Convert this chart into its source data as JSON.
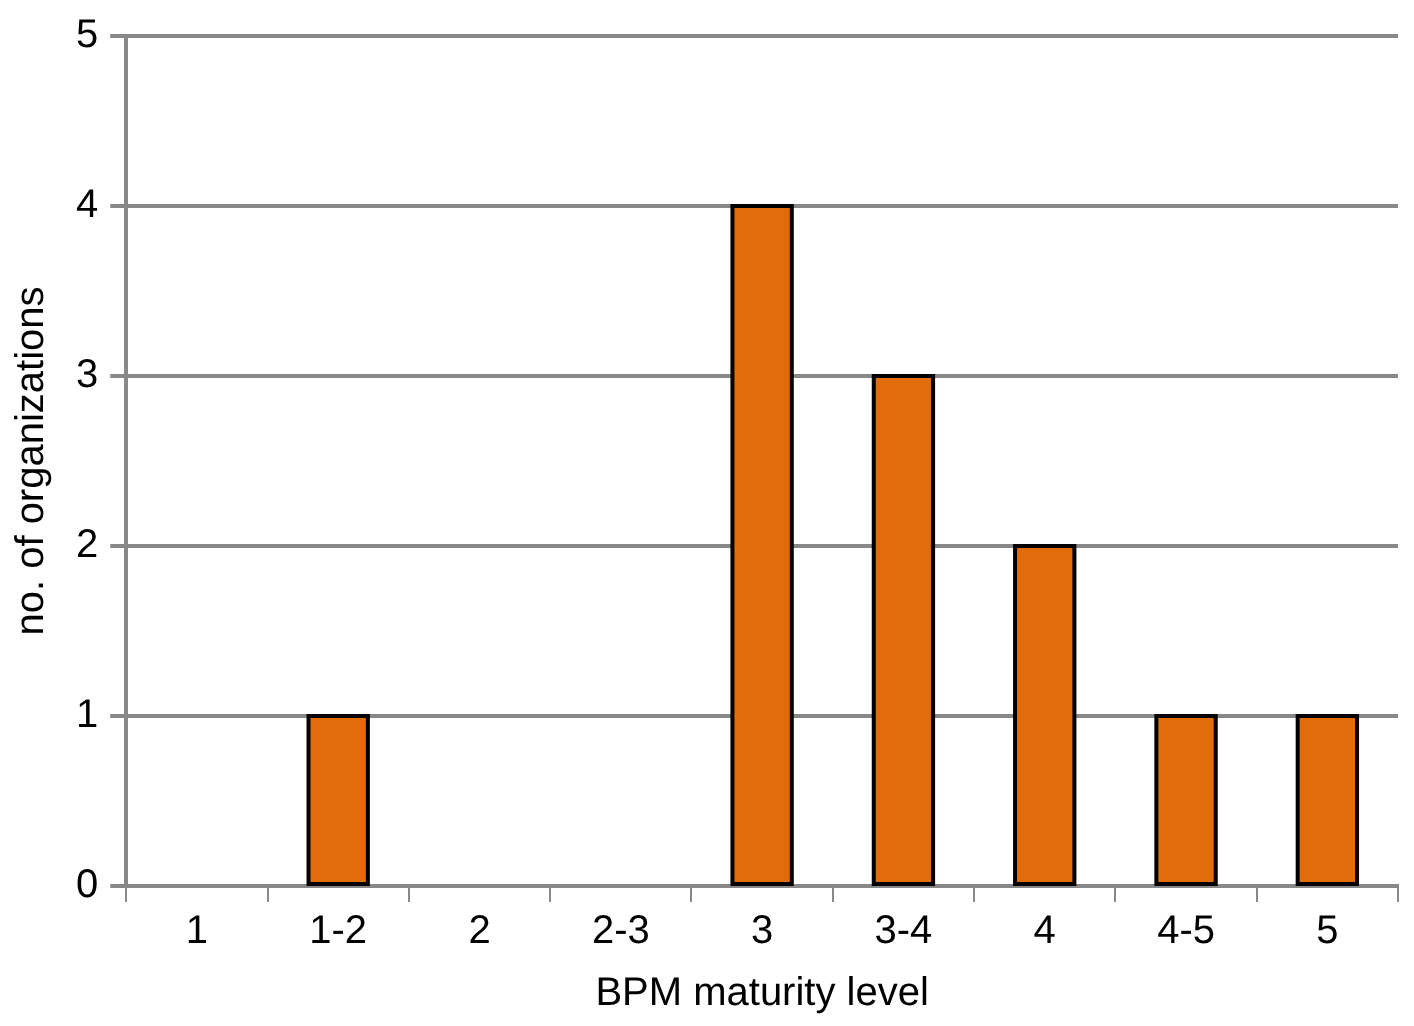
{
  "chart_data": {
    "type": "bar",
    "xlabel": "BPM maturity level",
    "ylabel": "no. of organizations",
    "categories": [
      "1",
      "1-2",
      "2",
      "2-3",
      "3",
      "3-4",
      "4",
      "4-5",
      "5"
    ],
    "values": [
      0,
      1,
      0,
      0,
      4,
      3,
      2,
      1,
      1
    ],
    "color": "#e36c0a",
    "ylim": [
      0,
      5
    ],
    "yticks": [
      0,
      1,
      2,
      3,
      4,
      5
    ],
    "grid": "y",
    "legend": false
  }
}
